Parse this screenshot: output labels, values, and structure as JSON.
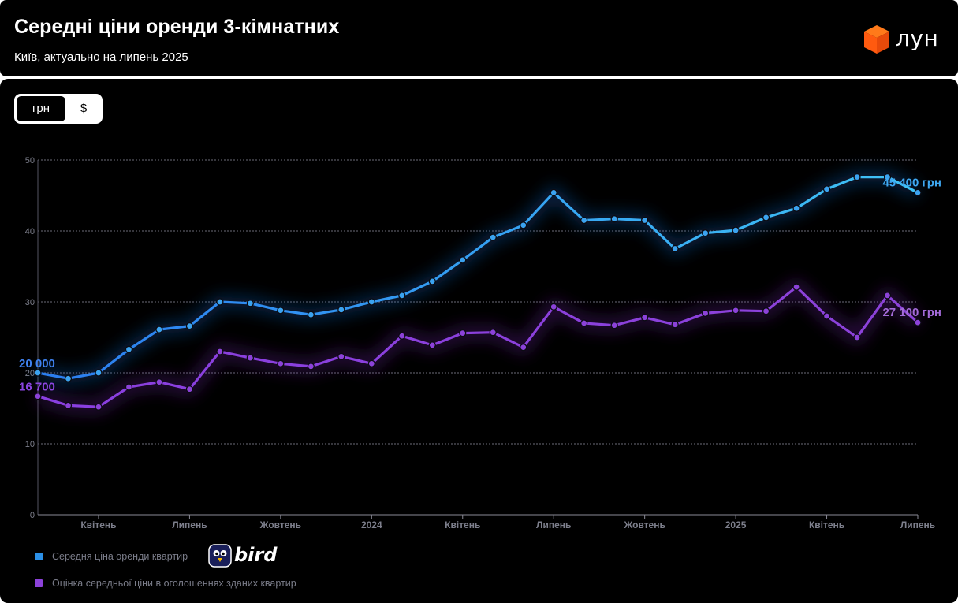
{
  "header": {
    "title": "Середні ціни оренди 3-кімнатних",
    "subtitle": "Київ, актуально на липень 2025",
    "logo_text": "лун"
  },
  "currency_toggle": {
    "active": "грн",
    "inactive": "$"
  },
  "legend": {
    "items": [
      {
        "label": "Середня ціна оренди квартир",
        "color": "#3ba3f0"
      },
      {
        "label": "Оцінка середньої ціни в оголошеннях зданих квартир",
        "color": "#8c42d9"
      }
    ],
    "badge": "bird"
  },
  "chart_data": {
    "type": "line",
    "y_ticks": [
      "0",
      "10",
      "20",
      "30",
      "40",
      "50"
    ],
    "ylim": [
      0,
      50
    ],
    "x_tick_labels": [
      {
        "index": 2,
        "label": "Квітень"
      },
      {
        "index": 5,
        "label": "Липень"
      },
      {
        "index": 8,
        "label": "Жовтень"
      },
      {
        "index": 11,
        "label": "2024"
      },
      {
        "index": 14,
        "label": "Квітень"
      },
      {
        "index": 17,
        "label": "Липень"
      },
      {
        "index": 20,
        "label": "Жовтень"
      },
      {
        "index": 23,
        "label": "2025"
      },
      {
        "index": 26,
        "label": "Квітень"
      },
      {
        "index": 29,
        "label": "Липень"
      }
    ],
    "grid": true,
    "series": [
      {
        "name": "Середня ціна оренди квартир",
        "color": "#3ba3f0",
        "values": [
          20.0,
          19.2,
          20.0,
          23.3,
          26.1,
          26.6,
          30.0,
          29.8,
          28.8,
          28.2,
          28.9,
          30.0,
          30.9,
          32.9,
          35.9,
          39.1,
          40.8,
          45.4,
          41.5,
          41.7,
          41.5,
          37.5,
          39.7,
          40.1,
          41.9,
          43.2,
          45.9,
          47.6,
          47.6,
          45.4
        ],
        "start_label": "20 000",
        "end_label": "45 400 грн"
      },
      {
        "name": "Оцінка середньої ціни в оголошеннях зданих квартир",
        "color": "#8c42d9",
        "values": [
          16.7,
          15.4,
          15.2,
          18.0,
          18.7,
          17.7,
          23.0,
          22.1,
          21.3,
          20.9,
          22.3,
          21.3,
          25.2,
          23.9,
          25.6,
          25.7,
          23.6,
          29.3,
          27.0,
          26.7,
          27.8,
          26.8,
          28.4,
          28.8,
          28.7,
          32.1,
          28.0,
          25.0,
          30.9,
          27.1
        ],
        "start_label": "16 700",
        "end_label": "27 100 грн"
      }
    ]
  }
}
